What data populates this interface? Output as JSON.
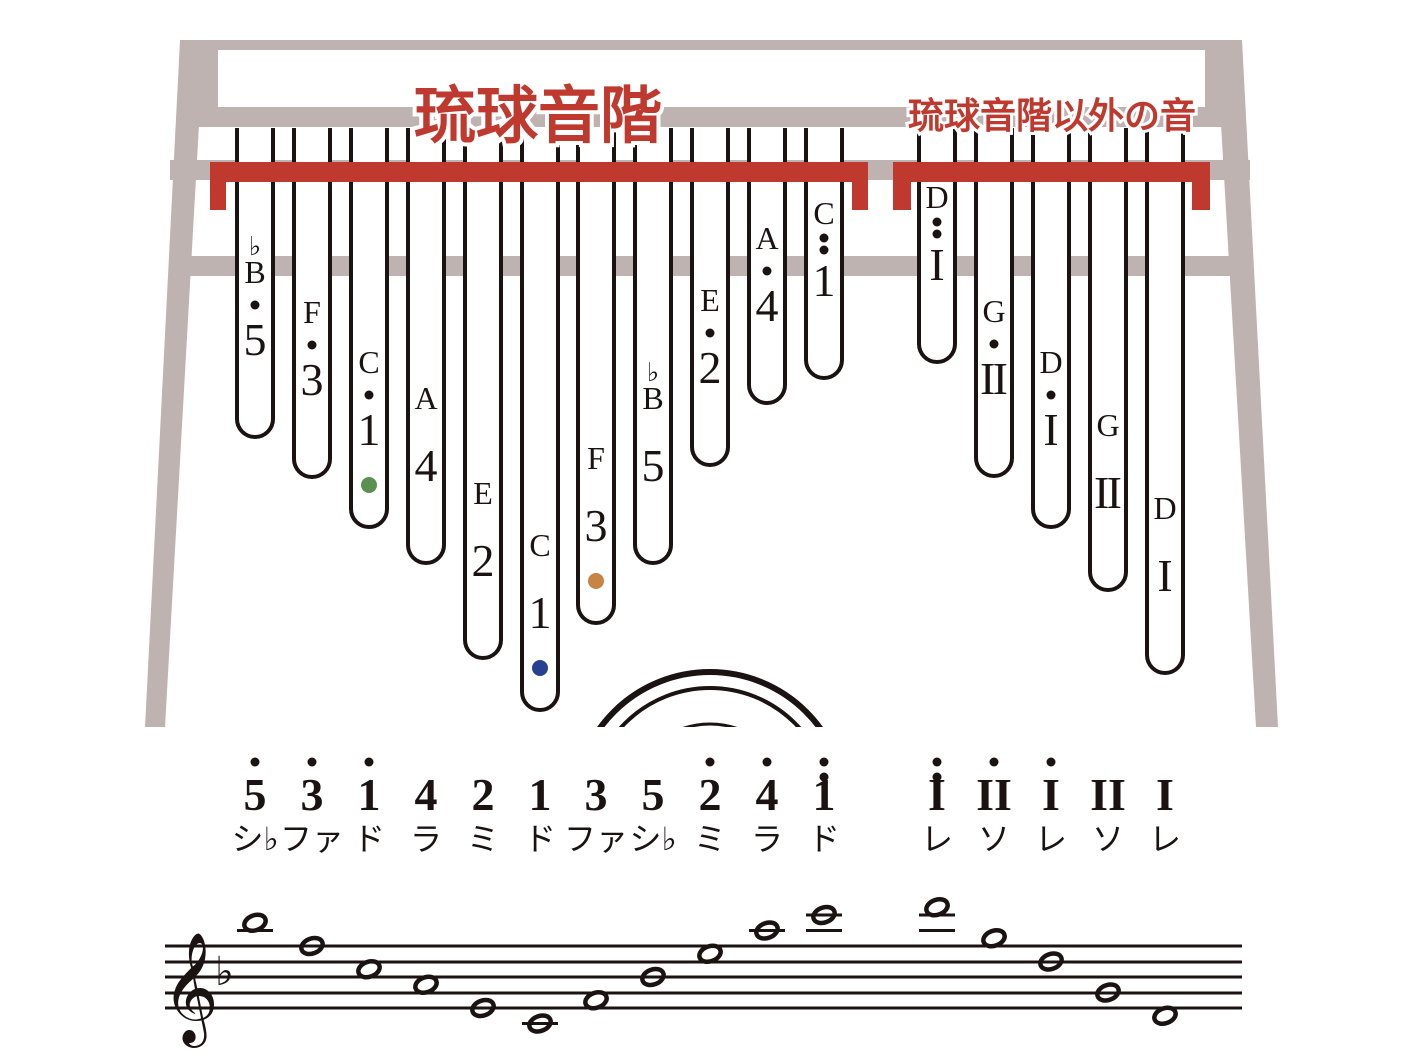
{
  "titles": {
    "ryukyu_scale": "琉球音階",
    "other_notes": "琉球音階以外の音"
  },
  "colors": {
    "frame": "#bfb3b1",
    "bracket": "#c0392f",
    "tine": "#1a1311",
    "green": "#5a9150",
    "blue": "#27408f",
    "orange": "#c78442"
  },
  "tines": [
    {
      "letter": "B",
      "flat": "♭",
      "num": "5",
      "dots": 1,
      "group": "ryukyu"
    },
    {
      "letter": "F",
      "flat": "",
      "num": "3",
      "dots": 1,
      "group": "ryukyu"
    },
    {
      "letter": "C",
      "flat": "",
      "num": "1",
      "dots": 1,
      "group": "ryukyu",
      "marker": "green"
    },
    {
      "letter": "A",
      "flat": "",
      "num": "4",
      "dots": 0,
      "group": "ryukyu"
    },
    {
      "letter": "E",
      "flat": "",
      "num": "2",
      "dots": 0,
      "group": "ryukyu"
    },
    {
      "letter": "C",
      "flat": "",
      "num": "1",
      "dots": 0,
      "group": "ryukyu",
      "marker": "blue"
    },
    {
      "letter": "F",
      "flat": "",
      "num": "3",
      "dots": 0,
      "group": "ryukyu",
      "marker": "orange"
    },
    {
      "letter": "B",
      "flat": "♭",
      "num": "5",
      "dots": 0,
      "group": "ryukyu"
    },
    {
      "letter": "E",
      "flat": "",
      "num": "2",
      "dots": 1,
      "group": "ryukyu"
    },
    {
      "letter": "A",
      "flat": "",
      "num": "4",
      "dots": 1,
      "group": "ryukyu"
    },
    {
      "letter": "C",
      "flat": "",
      "num": "1",
      "dots": 2,
      "group": "ryukyu"
    },
    {
      "letter": "D",
      "flat": "",
      "num": "I",
      "dots": 2,
      "group": "other"
    },
    {
      "letter": "G",
      "flat": "",
      "num": "II",
      "dots": 1,
      "group": "other"
    },
    {
      "letter": "D",
      "flat": "",
      "num": "I",
      "dots": 1,
      "group": "other"
    },
    {
      "letter": "G",
      "flat": "",
      "num": "II",
      "dots": 0,
      "group": "other"
    },
    {
      "letter": "D",
      "flat": "",
      "num": "I",
      "dots": 0,
      "group": "other"
    }
  ],
  "legend_row": [
    {
      "num": "5",
      "dots": 1,
      "solfege": "シ♭"
    },
    {
      "num": "3",
      "dots": 1,
      "solfege": "ファ"
    },
    {
      "num": "1",
      "dots": 1,
      "solfege": "ド"
    },
    {
      "num": "4",
      "dots": 0,
      "solfege": "ラ"
    },
    {
      "num": "2",
      "dots": 0,
      "solfege": "ミ"
    },
    {
      "num": "1",
      "dots": 0,
      "solfege": "ド"
    },
    {
      "num": "3",
      "dots": 0,
      "solfege": "ファ"
    },
    {
      "num": "5",
      "dots": 0,
      "solfege": "シ♭"
    },
    {
      "num": "2",
      "dots": 1,
      "solfege": "ミ"
    },
    {
      "num": "4",
      "dots": 1,
      "solfege": "ラ"
    },
    {
      "num": "1",
      "dots": 2,
      "solfege": "ド"
    },
    {
      "num": "I",
      "dots": 2,
      "solfege": "レ"
    },
    {
      "num": "II",
      "dots": 1,
      "solfege": "ソ"
    },
    {
      "num": "I",
      "dots": 1,
      "solfege": "レ"
    },
    {
      "num": "II",
      "dots": 0,
      "solfege": "ソ"
    },
    {
      "num": "I",
      "dots": 0,
      "solfege": "レ"
    }
  ],
  "staff": {
    "clef": "treble",
    "key_signature": "♭",
    "notes": [
      "B♭5",
      "F5",
      "C5",
      "A4",
      "E4",
      "C4",
      "F4",
      "B♭4",
      "E5",
      "A5",
      "C6",
      "D6",
      "G5",
      "D5",
      "G4",
      "D4"
    ]
  }
}
